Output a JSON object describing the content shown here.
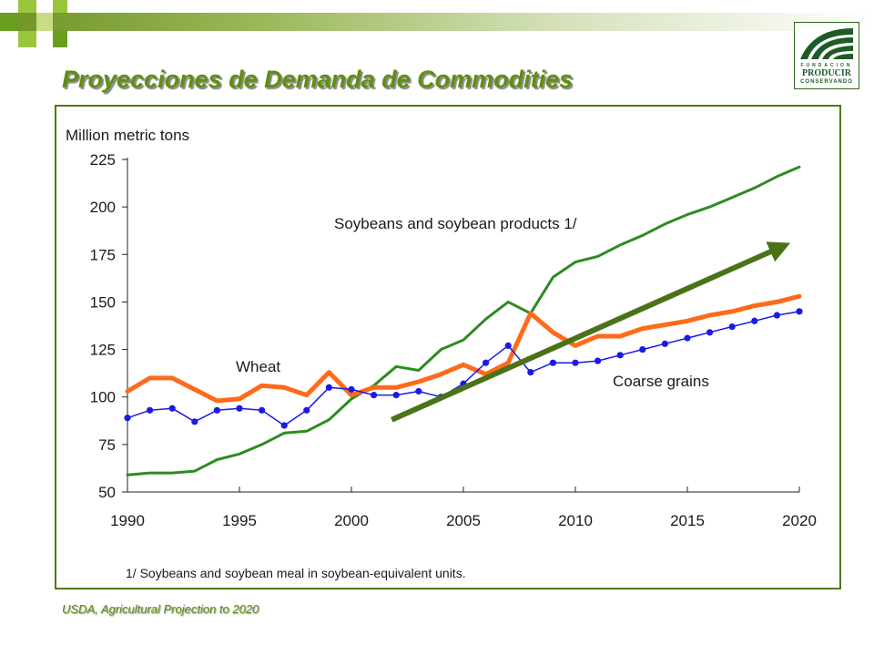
{
  "slide": {
    "title": "Proyecciones de Demanda de Commodities",
    "source_note": "USDA, Agricultural Projection to 2020",
    "logo": {
      "line1": "FUNDACION",
      "line2": "PRODUCIR",
      "line3": "CONSERVANDO"
    }
  },
  "colors": {
    "accent": "#5f8f12",
    "frame": "#4d7a10",
    "soybeans": "#2e8b22",
    "wheat": "#ff6a1a",
    "coarse_grains": "#1a1ae6",
    "trend_arrow": "#4a7318"
  },
  "chart_data": {
    "type": "line",
    "ylabel": "Million metric tons",
    "xlim": [
      1990,
      2020
    ],
    "ylim": [
      50,
      225
    ],
    "x_ticks": [
      "1990",
      "1995",
      "2000",
      "2005",
      "2010",
      "2015",
      "2020"
    ],
    "y_ticks": [
      "50",
      "75",
      "100",
      "125",
      "150",
      "175",
      "200",
      "225"
    ],
    "footnote": "1/ Soybeans and soybean meal in soybean-equivalent units.",
    "x": [
      1990,
      1991,
      1992,
      1993,
      1994,
      1995,
      1996,
      1997,
      1998,
      1999,
      2000,
      2001,
      2002,
      2003,
      2004,
      2005,
      2006,
      2007,
      2008,
      2009,
      2010,
      2011,
      2012,
      2013,
      2014,
      2015,
      2016,
      2017,
      2018,
      2019,
      2020
    ],
    "series": [
      {
        "name": "Soybeans and soybean products 1/",
        "values": [
          59,
          60,
          60,
          61,
          67,
          70,
          75,
          81,
          82,
          88,
          99,
          106,
          116,
          114,
          125,
          130,
          141,
          150,
          144,
          163,
          171,
          174,
          180,
          185,
          191,
          196,
          200,
          205,
          210,
          216,
          221
        ]
      },
      {
        "name": "Wheat",
        "values": [
          103,
          110,
          110,
          104,
          98,
          99,
          106,
          105,
          101,
          113,
          101,
          105,
          105,
          108,
          112,
          117,
          112,
          118,
          144,
          134,
          127,
          132,
          132,
          136,
          138,
          140,
          143,
          145,
          148,
          150,
          153
        ]
      },
      {
        "name": "Coarse grains",
        "values": [
          89,
          93,
          94,
          87,
          93,
          94,
          93,
          85,
          93,
          105,
          104,
          101,
          101,
          103,
          100,
          107,
          118,
          127,
          113,
          118,
          118,
          119,
          122,
          125,
          128,
          131,
          134,
          137,
          140,
          143,
          145
        ]
      }
    ]
  }
}
